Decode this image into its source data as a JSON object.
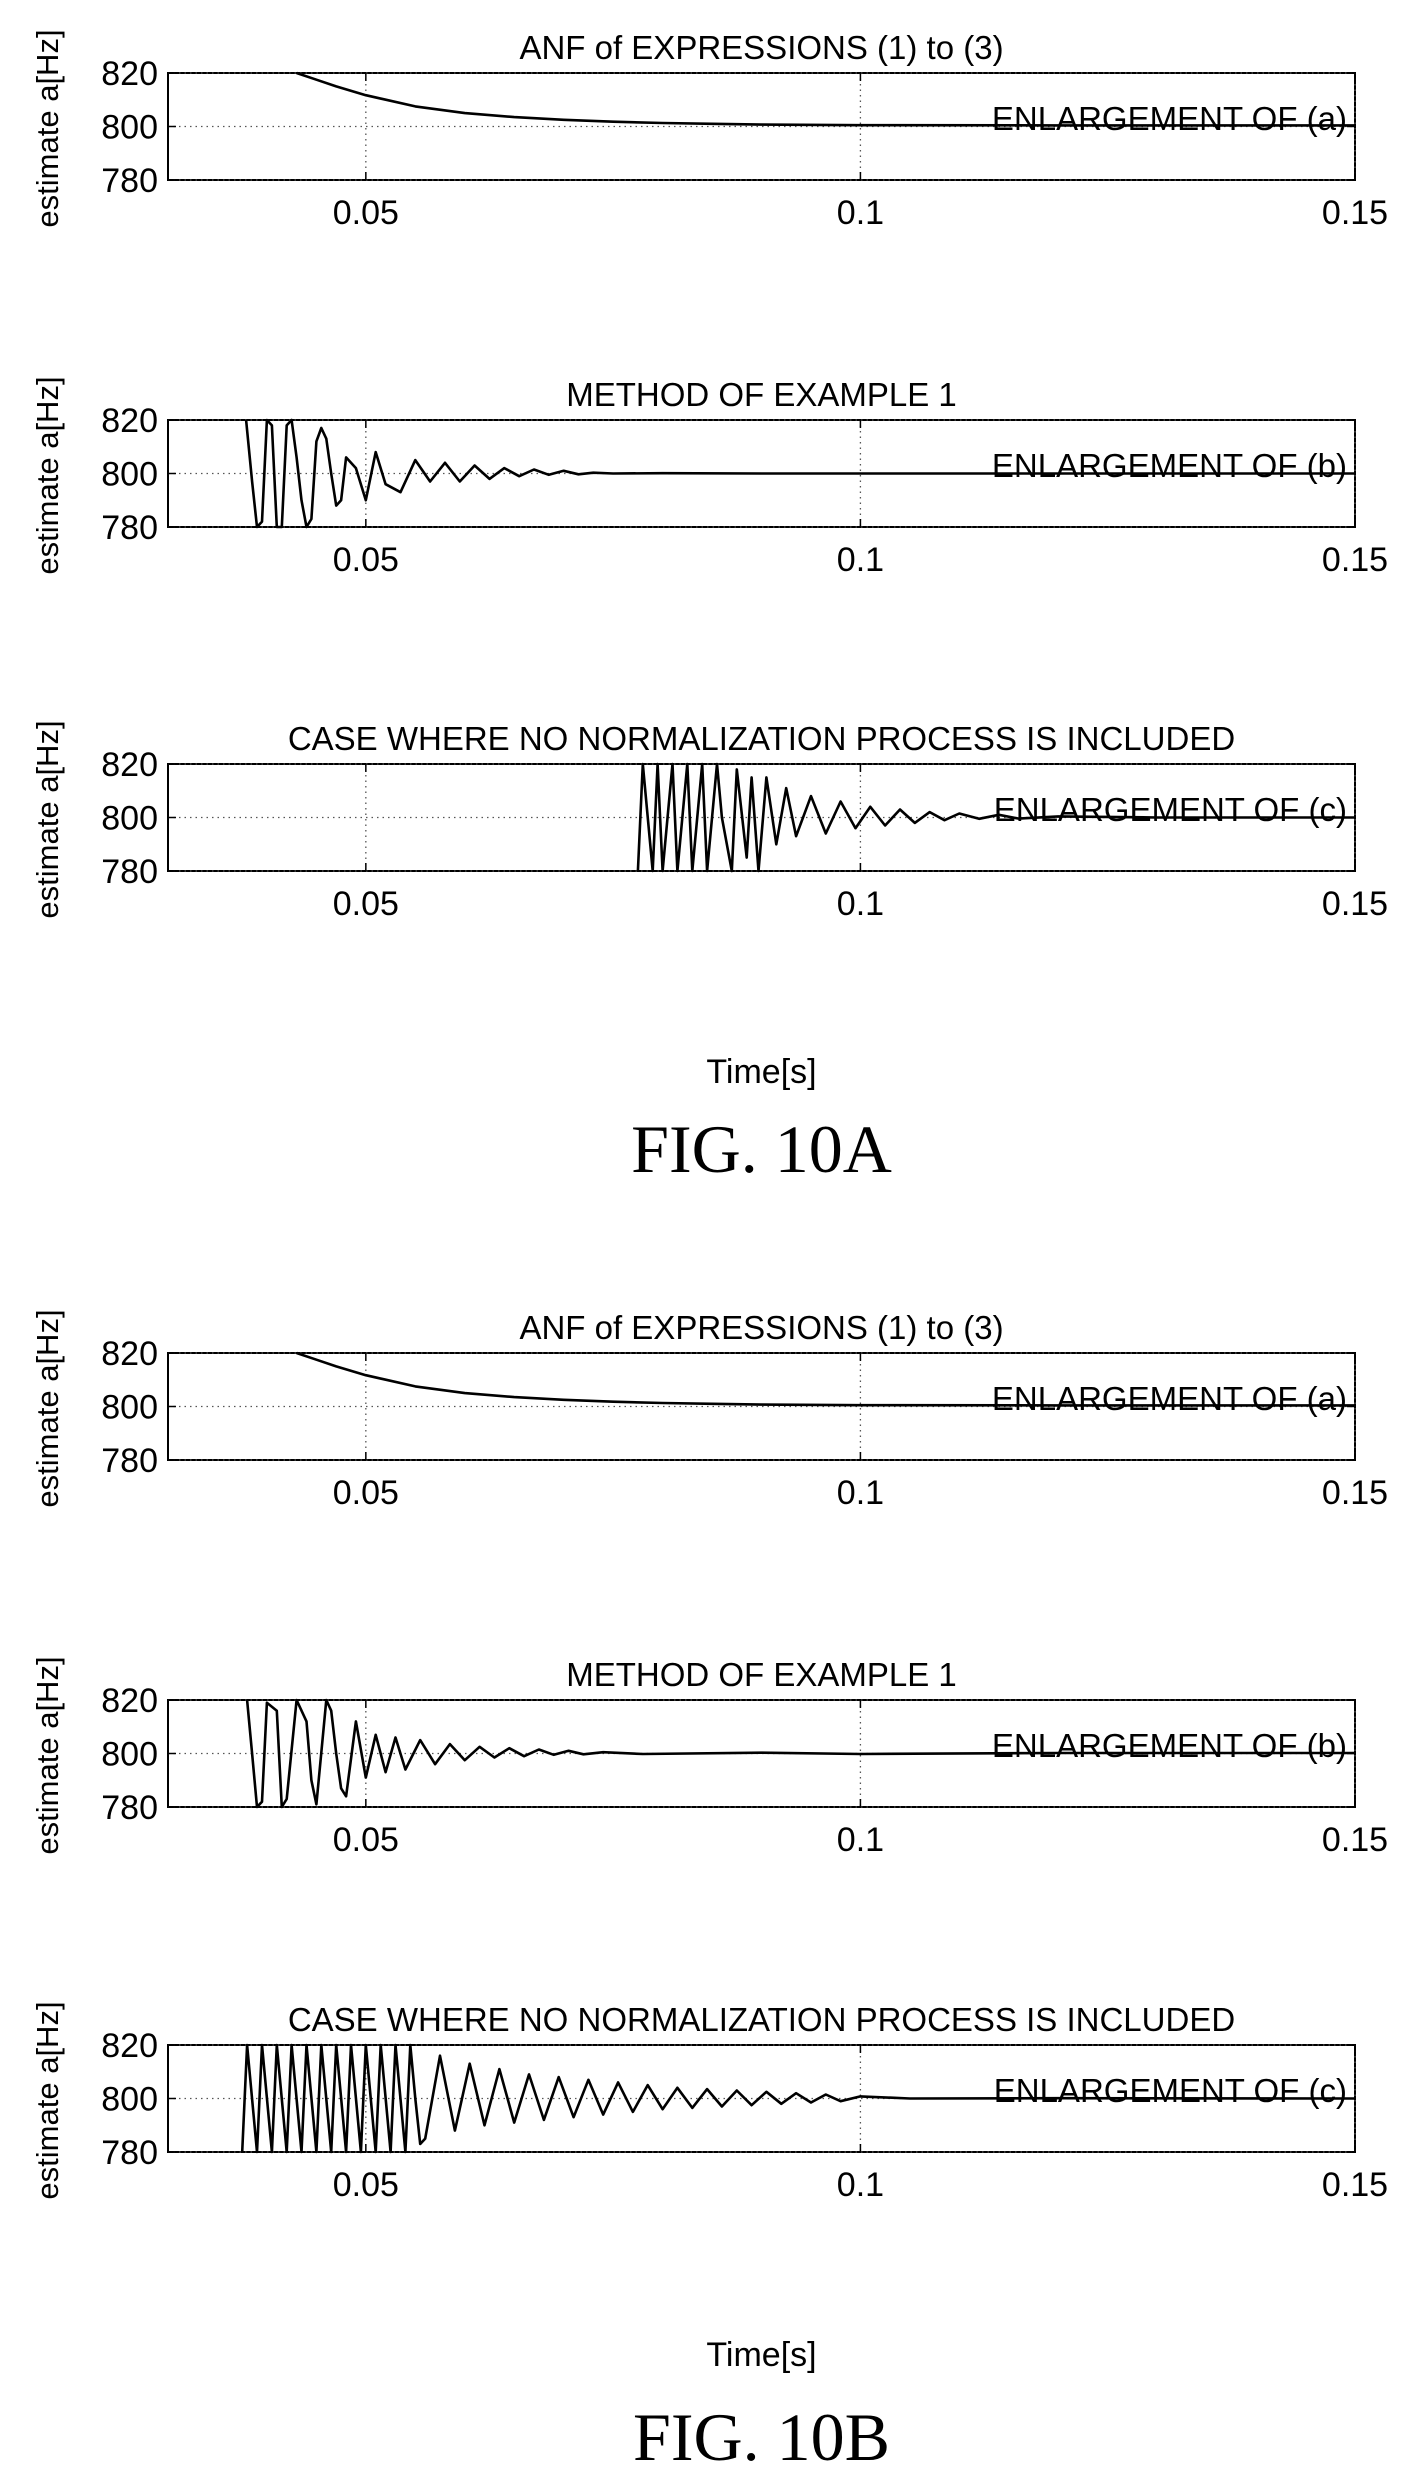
{
  "figures": [
    {
      "caption": "FIG. 10A",
      "xlabel": "Time[s]",
      "panels": [
        {
          "title": "ANF of EXPRESSIONS (1) to (3)",
          "ylabel": "estimate a[Hz]",
          "annotation": "ENLARGEMENT OF (a)"
        },
        {
          "title": "METHOD OF EXAMPLE 1",
          "ylabel": "estimate a[Hz]",
          "annotation": "ENLARGEMENT OF (b)"
        },
        {
          "title": "CASE WHERE NO NORMALIZATION PROCESS IS INCLUDED",
          "ylabel": "estimate a[Hz]",
          "annotation": "ENLARGEMENT OF (c)"
        }
      ]
    },
    {
      "caption": "FIG. 10B",
      "xlabel": "Time[s]",
      "panels": [
        {
          "title": "ANF of EXPRESSIONS (1) to (3)",
          "ylabel": "estimate a[Hz]",
          "annotation": "ENLARGEMENT OF (a)"
        },
        {
          "title": "METHOD OF EXAMPLE 1",
          "ylabel": "estimate a[Hz]",
          "annotation": "ENLARGEMENT OF (b)"
        },
        {
          "title": "CASE WHERE NO NORMALIZATION PROCESS IS INCLUDED",
          "ylabel": "estimate a[Hz]",
          "annotation": "ENLARGEMENT OF (c)"
        }
      ]
    }
  ],
  "chart_data": [
    {
      "type": "line",
      "figure": "FIG. 10A",
      "title": "ANF of EXPRESSIONS (1) to (3)",
      "xlabel": "",
      "ylabel": "estimate a[Hz]",
      "annotation": "ENLARGEMENT OF (a)",
      "xlim": [
        0.03,
        0.15
      ],
      "ylim": [
        780,
        820
      ],
      "xticks": [
        0.05,
        0.1,
        0.15
      ],
      "xtick_labels": [
        "0.05",
        "0.1",
        "0.15"
      ],
      "yticks": [
        780,
        800,
        820
      ],
      "ytick_labels": [
        "780",
        "800",
        "820"
      ],
      "grid": true,
      "series": [
        {
          "x": [
            0.043,
            0.045,
            0.047,
            0.05,
            0.055,
            0.06,
            0.065,
            0.07,
            0.075,
            0.08,
            0.085,
            0.09,
            0.1,
            0.12,
            0.15
          ],
          "y": [
            820,
            817.5,
            815.0,
            811.7,
            807.5,
            805.0,
            803.5,
            802.5,
            801.8,
            801.3,
            801.0,
            800.7,
            800.5,
            800.4,
            800.4
          ]
        }
      ]
    },
    {
      "type": "line",
      "figure": "FIG. 10A",
      "title": "METHOD OF EXAMPLE 1",
      "xlabel": "",
      "ylabel": "estimate a[Hz]",
      "annotation": "ENLARGEMENT OF (b)",
      "xlim": [
        0.03,
        0.15
      ],
      "ylim": [
        780,
        820
      ],
      "xticks": [
        0.05,
        0.1,
        0.15
      ],
      "xtick_labels": [
        "0.05",
        "0.1",
        "0.15"
      ],
      "yticks": [
        780,
        800,
        820
      ],
      "ytick_labels": [
        "780",
        "800",
        "820"
      ],
      "grid": true,
      "series": [
        {
          "x": [
            0.0379,
            0.0385,
            0.039,
            0.0395,
            0.04,
            0.0405,
            0.041,
            0.0415,
            0.042,
            0.0425,
            0.043,
            0.0435,
            0.044,
            0.0445,
            0.045,
            0.0455,
            0.046,
            0.0465,
            0.047,
            0.0475,
            0.048,
            0.049,
            0.05,
            0.051,
            0.052,
            0.0535,
            0.055,
            0.0565,
            0.058,
            0.0595,
            0.061,
            0.0625,
            0.064,
            0.0655,
            0.067,
            0.0685,
            0.07,
            0.0715,
            0.073,
            0.075,
            0.08,
            0.09,
            0.1,
            0.12,
            0.15
          ],
          "y": [
            820,
            797,
            780,
            782,
            820,
            818,
            780,
            780,
            818,
            820,
            806,
            790,
            780,
            783,
            812,
            817,
            813,
            800,
            788,
            790,
            806,
            802,
            790,
            808,
            796,
            793,
            805,
            797,
            804,
            797,
            803,
            798,
            802,
            799,
            801.5,
            799.5,
            801,
            799.7,
            800.3,
            800,
            800.1,
            800,
            800,
            800,
            800
          ]
        }
      ]
    },
    {
      "type": "line",
      "figure": "FIG. 10A",
      "title": "CASE WHERE NO NORMALIZATION PROCESS IS INCLUDED",
      "xlabel": "Time[s]",
      "ylabel": "estimate a[Hz]",
      "annotation": "ENLARGEMENT OF (c)",
      "xlim": [
        0.03,
        0.15
      ],
      "ylim": [
        780,
        820
      ],
      "xticks": [
        0.05,
        0.1,
        0.15
      ],
      "xtick_labels": [
        "0.05",
        "0.1",
        "0.15"
      ],
      "yticks": [
        780,
        800,
        820
      ],
      "ytick_labels": [
        "780",
        "800",
        "820"
      ],
      "grid": true,
      "series": [
        {
          "x": [
            0.0775,
            0.078,
            0.079,
            0.0795,
            0.08,
            0.081,
            0.0815,
            0.0825,
            0.083,
            0.084,
            0.0845,
            0.0855,
            0.086,
            0.087,
            0.0875,
            0.0885,
            0.089,
            0.0897,
            0.0905,
            0.0915,
            0.0925,
            0.0935,
            0.095,
            0.0965,
            0.098,
            0.0995,
            0.101,
            0.1025,
            0.104,
            0.1055,
            0.107,
            0.1085,
            0.11,
            0.112,
            0.114,
            0.116,
            0.12,
            0.13,
            0.15
          ],
          "y": [
            780,
            820,
            780,
            820,
            780,
            820,
            780,
            820,
            780,
            820,
            780,
            820,
            800,
            780,
            818,
            785,
            815,
            780,
            815,
            790,
            811,
            793,
            808,
            794,
            806,
            796,
            804,
            797,
            803,
            798,
            802,
            799,
            801.5,
            799.5,
            801,
            799.6,
            800.4,
            800,
            800
          ]
        }
      ]
    },
    {
      "type": "line",
      "figure": "FIG. 10B",
      "title": "ANF of EXPRESSIONS (1) to (3)",
      "xlabel": "",
      "ylabel": "estimate a[Hz]",
      "annotation": "ENLARGEMENT OF (a)",
      "xlim": [
        0.03,
        0.15
      ],
      "ylim": [
        780,
        820
      ],
      "xticks": [
        0.05,
        0.1,
        0.15
      ],
      "xtick_labels": [
        "0.05",
        "0.1",
        "0.15"
      ],
      "yticks": [
        780,
        800,
        820
      ],
      "ytick_labels": [
        "780",
        "800",
        "820"
      ],
      "grid": true,
      "series": [
        {
          "x": [
            0.043,
            0.045,
            0.047,
            0.05,
            0.055,
            0.06,
            0.065,
            0.07,
            0.075,
            0.08,
            0.085,
            0.09,
            0.1,
            0.12,
            0.15
          ],
          "y": [
            820,
            817.5,
            815.0,
            811.7,
            807.5,
            805.0,
            803.5,
            802.5,
            801.8,
            801.3,
            801.0,
            800.7,
            800.5,
            800.4,
            800.4
          ]
        }
      ]
    },
    {
      "type": "line",
      "figure": "FIG. 10B",
      "title": "METHOD OF EXAMPLE 1",
      "xlabel": "",
      "ylabel": "estimate a[Hz]",
      "annotation": "ENLARGEMENT OF (b)",
      "xlim": [
        0.03,
        0.15
      ],
      "ylim": [
        780,
        820
      ],
      "xticks": [
        0.05,
        0.1,
        0.15
      ],
      "xtick_labels": [
        "0.05",
        "0.1",
        "0.15"
      ],
      "yticks": [
        780,
        800,
        820
      ],
      "ytick_labels": [
        "780",
        "800",
        "820"
      ],
      "grid": true,
      "series": [
        {
          "x": [
            0.038,
            0.0385,
            0.039,
            0.0395,
            0.04,
            0.041,
            0.0415,
            0.042,
            0.043,
            0.044,
            0.0445,
            0.045,
            0.046,
            0.0465,
            0.047,
            0.0475,
            0.048,
            0.049,
            0.05,
            0.051,
            0.052,
            0.053,
            0.054,
            0.0555,
            0.057,
            0.0585,
            0.06,
            0.0615,
            0.063,
            0.0645,
            0.066,
            0.0675,
            0.069,
            0.0705,
            0.072,
            0.074,
            0.078,
            0.09,
            0.1,
            0.12,
            0.15
          ],
          "y": [
            820,
            800,
            780,
            782,
            819,
            816,
            780,
            783,
            820,
            812,
            790,
            781,
            820,
            816,
            800,
            787,
            784,
            812,
            791,
            807,
            793,
            806,
            794,
            805,
            796,
            803.5,
            797.5,
            802.5,
            798.5,
            802,
            799,
            801.5,
            799.5,
            801,
            799.7,
            800.5,
            799.8,
            800.3,
            799.8,
            800.2,
            800.2
          ]
        }
      ]
    },
    {
      "type": "line",
      "figure": "FIG. 10B",
      "title": "CASE WHERE NO NORMALIZATION PROCESS IS INCLUDED",
      "xlabel": "Time[s]",
      "ylabel": "estimate a[Hz]",
      "annotation": "ENLARGEMENT OF (c)",
      "xlim": [
        0.03,
        0.15
      ],
      "ylim": [
        780,
        820
      ],
      "xticks": [
        0.05,
        0.1,
        0.15
      ],
      "xtick_labels": [
        "0.05",
        "0.1",
        "0.15"
      ],
      "yticks": [
        780,
        800,
        820
      ],
      "ytick_labels": [
        "780",
        "800",
        "820"
      ],
      "grid": true,
      "series": [
        {
          "x": [
            0.0375,
            0.038,
            0.039,
            0.0395,
            0.0405,
            0.041,
            0.042,
            0.0425,
            0.0435,
            0.044,
            0.045,
            0.0455,
            0.0465,
            0.047,
            0.048,
            0.0485,
            0.0495,
            0.05,
            0.051,
            0.0515,
            0.0525,
            0.053,
            0.054,
            0.0545,
            0.055,
            0.0555,
            0.056,
            0.0575,
            0.059,
            0.0605,
            0.062,
            0.0635,
            0.065,
            0.0665,
            0.068,
            0.0695,
            0.071,
            0.0725,
            0.074,
            0.0755,
            0.077,
            0.0785,
            0.08,
            0.0815,
            0.083,
            0.0845,
            0.086,
            0.0875,
            0.089,
            0.0905,
            0.092,
            0.0935,
            0.095,
            0.0965,
            0.098,
            0.1,
            0.105,
            0.12,
            0.15
          ],
          "y": [
            780,
            820,
            780,
            820,
            780,
            820,
            780,
            820,
            780,
            820,
            780,
            820,
            780,
            820,
            780,
            820,
            780,
            820,
            780,
            820,
            780,
            820,
            780,
            820,
            800,
            783,
            785,
            816,
            788,
            813,
            790,
            811,
            791,
            809,
            792,
            808,
            793,
            807,
            794,
            806,
            795,
            805,
            796,
            804,
            796.5,
            803.5,
            797,
            803,
            797.5,
            802.5,
            798,
            802,
            798.5,
            801.5,
            799,
            800.8,
            800,
            800.1,
            800
          ]
        }
      ]
    }
  ]
}
